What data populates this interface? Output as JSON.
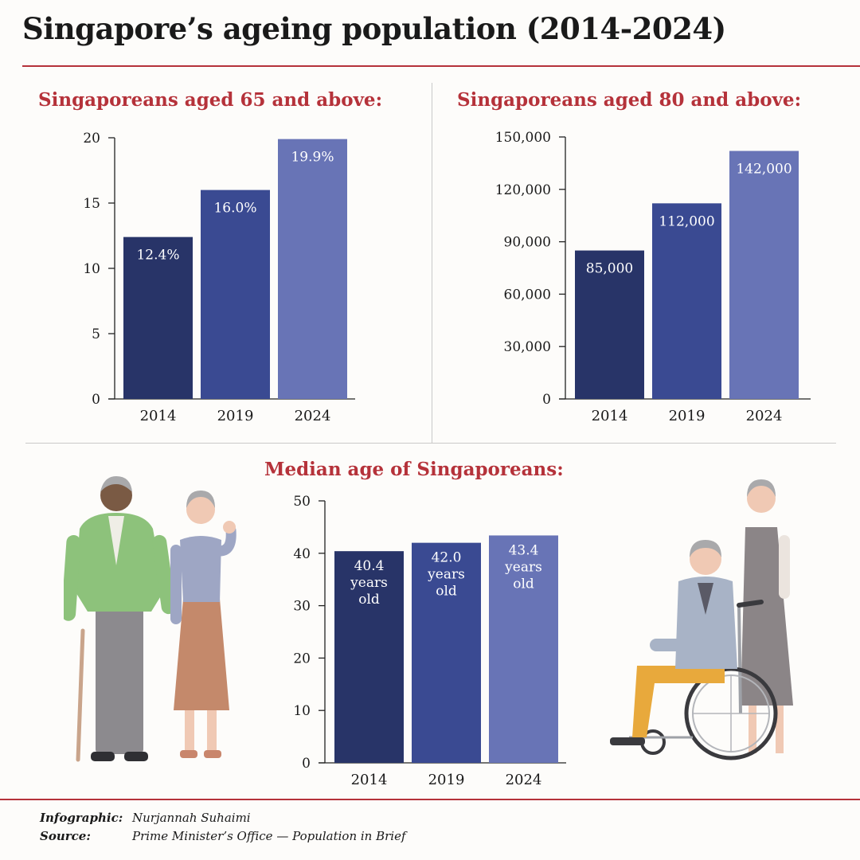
{
  "title": "Singapore’s ageing population (2014-2024)",
  "colors": {
    "accent": "#b5323a",
    "bar_2014": "#283468",
    "bar_2019": "#3a4a92",
    "bar_2024": "#6874b6"
  },
  "chart_data": [
    {
      "type": "bar",
      "title": "Singaporeans aged 65 and above:",
      "categories": [
        "2014",
        "2019",
        "2024"
      ],
      "values": [
        12.4,
        16.0,
        19.9
      ],
      "data_labels": [
        "12.4%",
        "16.0%",
        "19.9%"
      ],
      "yticks": [
        "0",
        "5",
        "10",
        "15",
        "20"
      ],
      "ytick_values": [
        0,
        5,
        10,
        15,
        20
      ],
      "ylim": [
        0,
        20
      ],
      "xlabel": "",
      "ylabel": "",
      "grid": false
    },
    {
      "type": "bar",
      "title": "Singaporeans aged 80 and above:",
      "categories": [
        "2014",
        "2019",
        "2024"
      ],
      "values": [
        85000,
        112000,
        142000
      ],
      "data_labels": [
        "85,000",
        "112,000",
        "142,000"
      ],
      "yticks": [
        "0",
        "30,000",
        "60,000",
        "90,000",
        "120,000",
        "150,000"
      ],
      "ytick_values": [
        0,
        30000,
        60000,
        90000,
        120000,
        150000
      ],
      "ylim": [
        0,
        150000
      ],
      "xlabel": "",
      "ylabel": "",
      "grid": false
    },
    {
      "type": "bar",
      "title": "Median age of Singaporeans:",
      "categories": [
        "2014",
        "2019",
        "2024"
      ],
      "values": [
        40.4,
        42.0,
        43.4
      ],
      "data_labels": [
        [
          "40.4",
          "years",
          "old"
        ],
        [
          "42.0",
          "years",
          "old"
        ],
        [
          "43.4",
          "years",
          "old"
        ]
      ],
      "yticks": [
        "0",
        "10",
        "20",
        "30",
        "40",
        "50"
      ],
      "ytick_values": [
        0,
        10,
        20,
        30,
        40,
        50
      ],
      "ylim": [
        0,
        50
      ],
      "xlabel": "",
      "ylabel": "",
      "grid": false
    }
  ],
  "credits": {
    "infographic_label": "Infographic:",
    "infographic_value": "Nurjannah Suhaimi",
    "source_label": "Source:",
    "source_value": "Prime Minister’s Office — Population in Brief"
  }
}
